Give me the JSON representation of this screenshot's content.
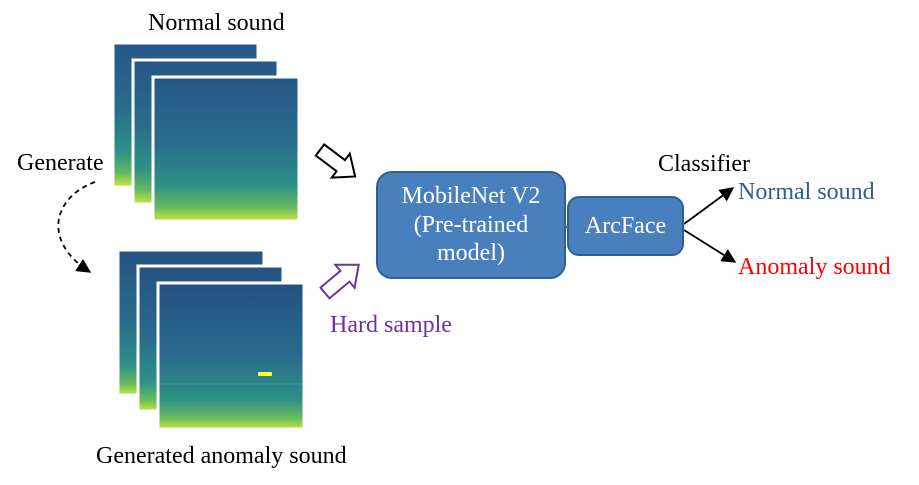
{
  "labels": {
    "normal_sound_top": "Normal sound",
    "generate": "Generate",
    "generated_anomaly": "Generated anomaly sound",
    "hard_sample": "Hard sample",
    "classifier": "Classifier",
    "output_normal": "Normal sound",
    "output_anomaly": "Anomaly sound"
  },
  "model_box": {
    "line1": "MobileNet V2",
    "line2": "(Pre-trained",
    "line3": "model)"
  },
  "arcface_box": {
    "label": "ArcFace"
  },
  "colors": {
    "box_fill": "#4a7fbe",
    "box_border": "#2f5f97",
    "hard_sample": "#7030a0",
    "output_normal": "#2e5d9f",
    "output_anomaly": "#ff0000",
    "spectrogram_dark": "#2a5e8a",
    "spectrogram_mid": "#2f8f86",
    "spectrogram_light": "#c8e83a",
    "anomaly_mark": "#ffff33"
  }
}
